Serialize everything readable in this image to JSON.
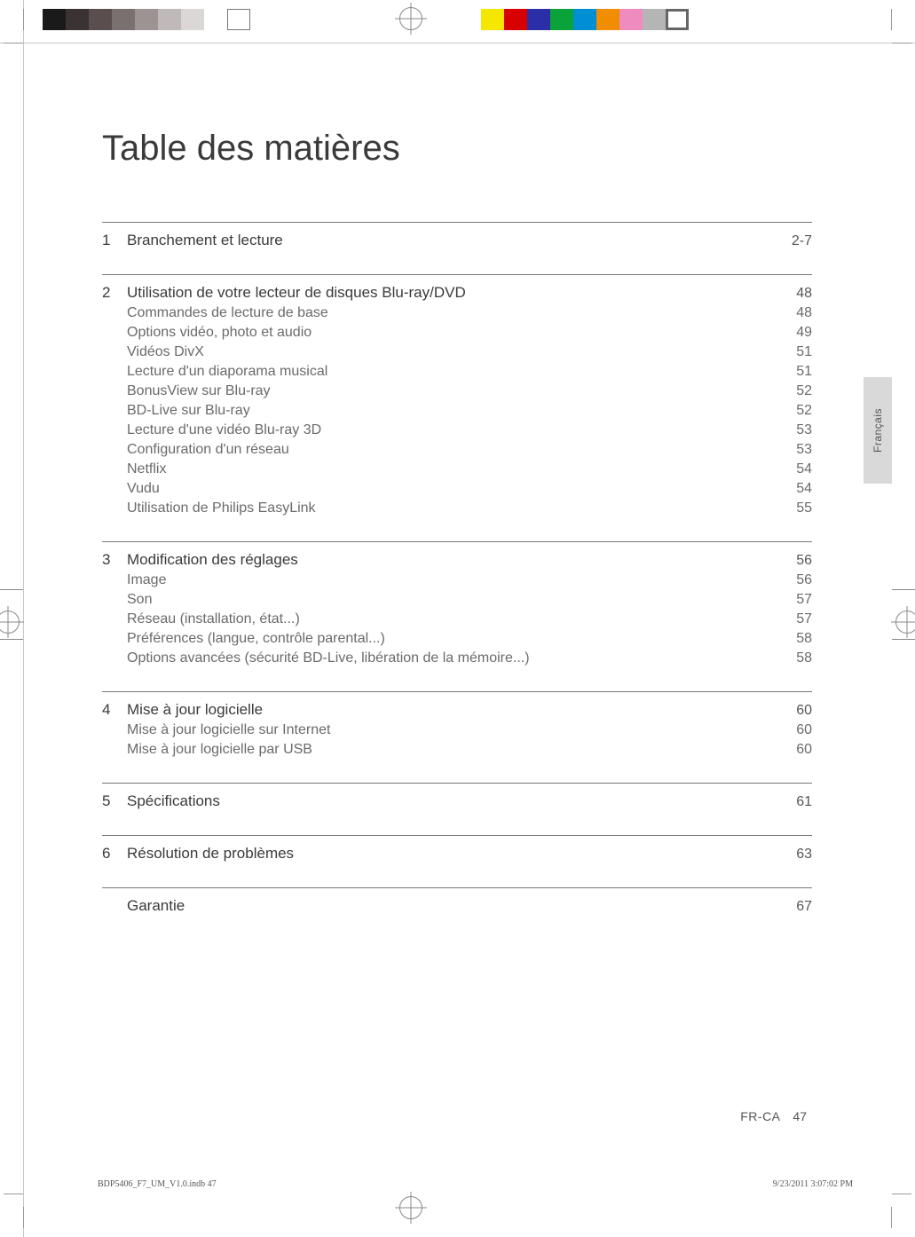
{
  "title": "Table des matières",
  "language_tab": "Français",
  "footer": {
    "locale": "FR-CA",
    "page_number": "47",
    "file_ref": "BDP5406_F7_UM_V1.0.indb   47",
    "timestamp": "9/23/2011   3:07:02 PM"
  },
  "swatches_left": [
    "#1a1a1a",
    "#3a3233",
    "#5a4e4f",
    "#7a7070",
    "#9d9393",
    "#c0b9b9",
    "#dcd7d7",
    "#ffffff"
  ],
  "swatches_right": [
    "#f6e700",
    "#d90000",
    "#2a2fa8",
    "#0aa33a",
    "#008fd4",
    "#f28c00",
    "#f08bc0",
    "#b5b5b5"
  ],
  "sections": [
    {
      "num": "1",
      "title": "Branchement et lecture",
      "page": "2-7",
      "subs": []
    },
    {
      "num": "2",
      "title": "Utilisation de votre lecteur de disques Blu-ray/DVD",
      "page": "48",
      "subs": [
        {
          "label": "Commandes de lecture de base",
          "page": "48"
        },
        {
          "label": "Options vidéo, photo et audio",
          "page": "49"
        },
        {
          "label": "Vidéos DivX",
          "page": "51"
        },
        {
          "label": "Lecture d'un diaporama musical",
          "page": "51"
        },
        {
          "label": "BonusView sur Blu-ray",
          "page": "52"
        },
        {
          "label": "BD-Live sur Blu-ray",
          "page": "52"
        },
        {
          "label": "Lecture d'une vidéo Blu-ray 3D",
          "page": "53"
        },
        {
          "label": "Configuration d'un réseau",
          "page": "53"
        },
        {
          "label": "Netflix",
          "page": "54"
        },
        {
          "label": "Vudu",
          "page": "54"
        },
        {
          "label": "Utilisation de Philips EasyLink",
          "page": "55"
        }
      ]
    },
    {
      "num": "3",
      "title": "Modification des réglages",
      "page": "56",
      "subs": [
        {
          "label": "Image",
          "page": "56"
        },
        {
          "label": "Son",
          "page": "57"
        },
        {
          "label": "Réseau (installation, état...)",
          "page": "57"
        },
        {
          "label": "Préférences (langue, contrôle parental...)",
          "page": "58"
        },
        {
          "label": "Options avancées (sécurité BD-Live, libération de la mémoire...)",
          "page": "58"
        }
      ]
    },
    {
      "num": "4",
      "title": "Mise à jour logicielle",
      "page": "60",
      "subs": [
        {
          "label": "Mise à jour logicielle sur Internet",
          "page": "60"
        },
        {
          "label": "Mise à jour logicielle par USB",
          "page": "60"
        }
      ]
    },
    {
      "num": "5",
      "title": "Spécifications",
      "page": "61",
      "subs": []
    },
    {
      "num": "6",
      "title": "Résolution de problèmes",
      "page": "63",
      "subs": []
    },
    {
      "num": "",
      "title": "Garantie",
      "page": "67",
      "subs": []
    }
  ]
}
